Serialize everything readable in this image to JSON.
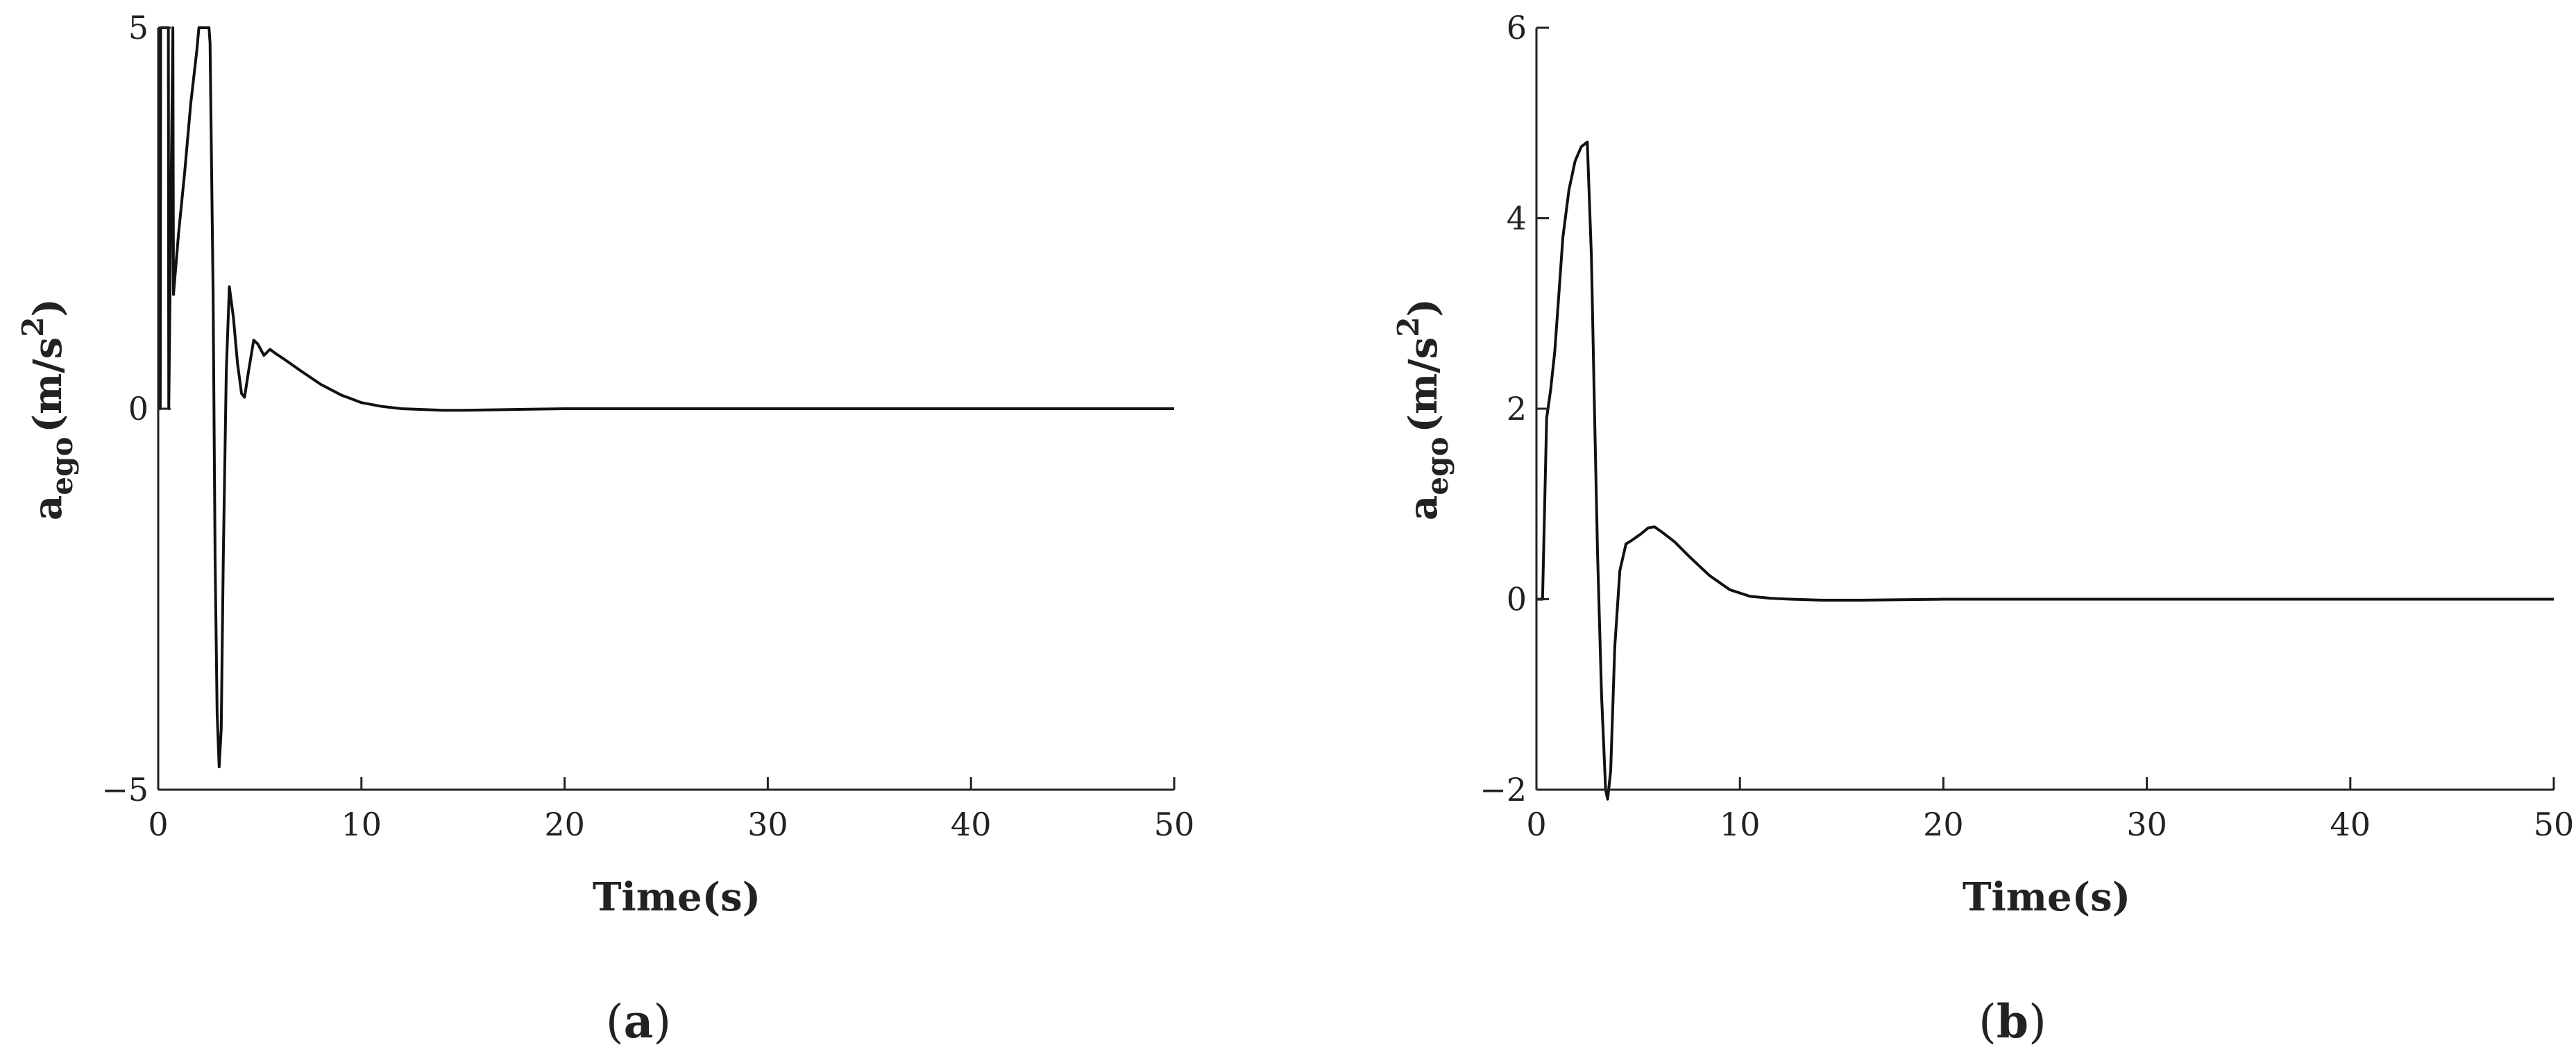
{
  "chart_data": [
    {
      "type": "line",
      "panel_label": "a",
      "xlabel": "Time(s)",
      "ylabel": {
        "main": "a",
        "sub": "ego",
        "unit_prefix": "(m/s",
        "unit_sup": "2",
        "unit_suffix": ")"
      },
      "xlim": [
        0,
        50
      ],
      "ylim": [
        -5,
        5
      ],
      "xticks": [
        0,
        10,
        20,
        30,
        40,
        50
      ],
      "yticks": [
        -5,
        0,
        5
      ],
      "ytick_labels": [
        "−5",
        "0",
        "5"
      ],
      "grid": false,
      "series": [
        {
          "color": "#111111",
          "x": [
            0,
            0.1,
            0.12,
            0.5,
            0.52,
            0.72,
            0.75,
            1.0,
            1.3,
            1.6,
            1.9,
            2.0,
            2.1,
            2.3,
            2.4,
            2.5,
            2.55,
            2.7,
            2.8,
            2.9,
            3.0,
            3.1,
            3.2,
            3.35,
            3.5,
            3.7,
            3.9,
            4.1,
            4.25,
            4.45,
            4.7,
            4.9,
            5.2,
            5.5,
            5.8,
            6.2,
            7.0,
            8.0,
            9.0,
            10.0,
            11.0,
            12.0,
            13.0,
            14.0,
            15.0,
            20.0,
            30.0,
            40.0,
            50.0
          ],
          "y": [
            0,
            0,
            5,
            5,
            0,
            5,
            1.5,
            2.3,
            3.1,
            4.0,
            4.7,
            5,
            5,
            5,
            5,
            5,
            4.8,
            1.5,
            -2.0,
            -4.0,
            -4.7,
            -4.2,
            -2.0,
            0.5,
            1.6,
            1.2,
            0.6,
            0.2,
            0.15,
            0.5,
            0.9,
            0.85,
            0.7,
            0.78,
            0.72,
            0.65,
            0.5,
            0.32,
            0.18,
            0.08,
            0.03,
            0.0,
            -0.01,
            -0.02,
            -0.02,
            0.0,
            0.0,
            0.0,
            0.0
          ]
        }
      ]
    },
    {
      "type": "line",
      "panel_label": "b",
      "xlabel": "Time(s)",
      "ylabel": {
        "main": "a",
        "sub": "ego",
        "unit_prefix": "(m/s",
        "unit_sup": "2",
        "unit_suffix": ")"
      },
      "xlim": [
        0,
        50
      ],
      "ylim": [
        -2,
        6
      ],
      "xticks": [
        0,
        10,
        20,
        30,
        40,
        50
      ],
      "yticks": [
        -2,
        0,
        2,
        4,
        6
      ],
      "ytick_labels": [
        "−2",
        "0",
        "2",
        "4",
        "6"
      ],
      "grid": false,
      "series": [
        {
          "color": "#111111",
          "x": [
            0,
            0.3,
            0.5,
            0.7,
            0.9,
            1.1,
            1.3,
            1.6,
            1.9,
            2.2,
            2.5,
            2.7,
            2.85,
            3.0,
            3.2,
            3.4,
            3.5,
            3.65,
            3.85,
            4.1,
            4.4,
            4.7,
            5.1,
            5.5,
            5.8,
            6.2,
            6.8,
            7.5,
            8.5,
            9.5,
            10.5,
            11.5,
            12.5,
            14.0,
            16.0,
            20.0,
            30.0,
            40.0,
            50.0
          ],
          "y": [
            0,
            0,
            1.9,
            2.2,
            2.6,
            3.2,
            3.8,
            4.3,
            4.6,
            4.75,
            4.8,
            3.6,
            2.0,
            0.5,
            -1.0,
            -2.0,
            -2.1,
            -1.8,
            -0.5,
            0.3,
            0.58,
            0.62,
            0.68,
            0.75,
            0.76,
            0.7,
            0.6,
            0.45,
            0.25,
            0.1,
            0.03,
            0.01,
            0.0,
            -0.01,
            -0.01,
            0.0,
            0.0,
            0.0,
            0.0
          ]
        }
      ]
    }
  ]
}
